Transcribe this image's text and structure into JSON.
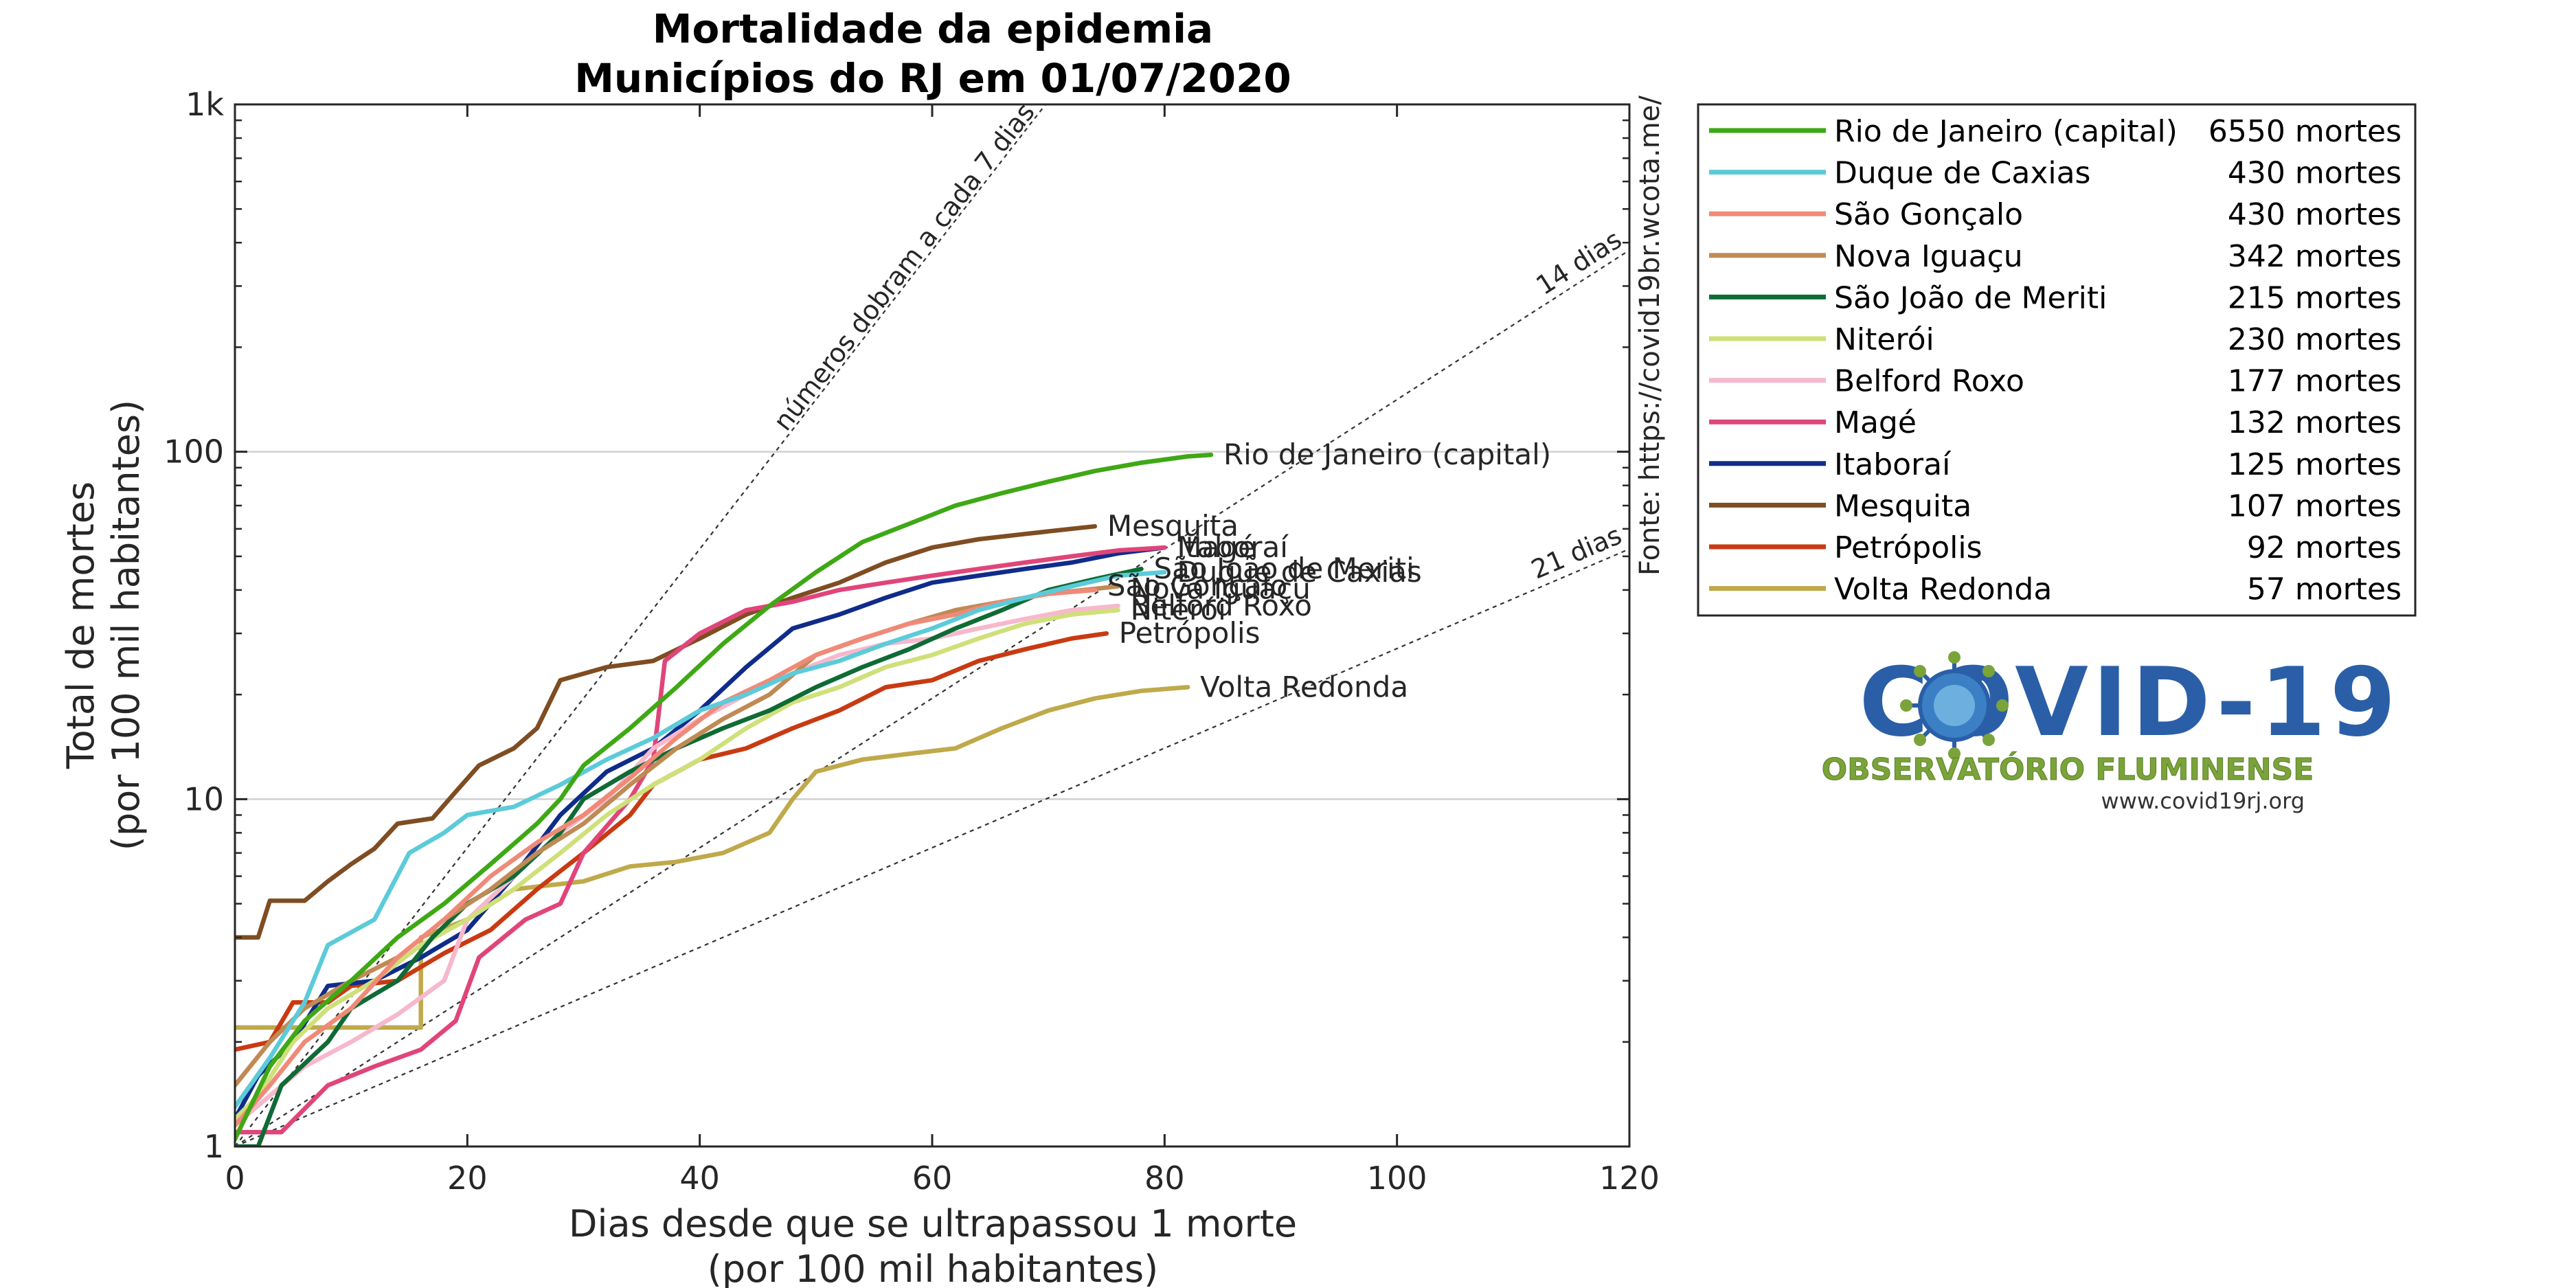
{
  "chart_data": {
    "type": "line",
    "title": "Mortalidade da epidemia",
    "subtitle": "Municípios do RJ em 01/07/2020",
    "xlabel": "Dias desde que se ultrapassou 1 morte",
    "xlabel2": "(por 100 mil habitantes)",
    "ylabel": "Total de mortes",
    "ylabel2": "(por 100 mil habitantes)",
    "xlim": [
      0,
      120
    ],
    "ylim": [
      1,
      1000
    ],
    "yscale": "log",
    "x_ticks": [
      0,
      20,
      40,
      60,
      80,
      100,
      120
    ],
    "x_tick_labels": [
      "0",
      "20",
      "40",
      "60",
      "80",
      "100",
      "120"
    ],
    "y_ticks": [
      1,
      10,
      100,
      1000
    ],
    "y_tick_labels": [
      "1",
      "10",
      "100",
      "1k"
    ],
    "grid": "horizontal-major",
    "source": "Fonte: https://covid19br.wcota.me/",
    "reference_lines": [
      {
        "label": "números dobram a cada 7 dias",
        "doubling_days": 7
      },
      {
        "label": "14 dias",
        "doubling_days": 14
      },
      {
        "label": "21 dias",
        "doubling_days": 21
      }
    ],
    "legend_position": "right-outside",
    "series": [
      {
        "name": "Rio de Janeiro (capital)",
        "deaths": "6550 mortes",
        "color": "#3fa815",
        "label_offset": 0,
        "points": [
          [
            0,
            1.05
          ],
          [
            3,
            1.7
          ],
          [
            6,
            2.3
          ],
          [
            10,
            3.0
          ],
          [
            14,
            4.0
          ],
          [
            18,
            5.0
          ],
          [
            22,
            6.5
          ],
          [
            26,
            8.5
          ],
          [
            28,
            10
          ],
          [
            30,
            12.5
          ],
          [
            34,
            16
          ],
          [
            38,
            21
          ],
          [
            42,
            28
          ],
          [
            46,
            36
          ],
          [
            50,
            45
          ],
          [
            54,
            55
          ],
          [
            58,
            62
          ],
          [
            62,
            70
          ],
          [
            66,
            76
          ],
          [
            70,
            82
          ],
          [
            74,
            88
          ],
          [
            78,
            93
          ],
          [
            82,
            97
          ],
          [
            84,
            98
          ]
        ]
      },
      {
        "name": "Duque de Caxias",
        "deaths": "430 mortes",
        "color": "#5ccbd9",
        "label_offset": 0,
        "points": [
          [
            0,
            1.3
          ],
          [
            3,
            1.8
          ],
          [
            6,
            2.6
          ],
          [
            8,
            3.8
          ],
          [
            12,
            4.5
          ],
          [
            15,
            7
          ],
          [
            18,
            8
          ],
          [
            20,
            9
          ],
          [
            24,
            9.5
          ],
          [
            28,
            11
          ],
          [
            32,
            13
          ],
          [
            36,
            15
          ],
          [
            40,
            18
          ],
          [
            44,
            20
          ],
          [
            48,
            23
          ],
          [
            52,
            25
          ],
          [
            56,
            28
          ],
          [
            60,
            31
          ],
          [
            64,
            35
          ],
          [
            68,
            38
          ],
          [
            72,
            41
          ],
          [
            76,
            44
          ],
          [
            80,
            45
          ]
        ]
      },
      {
        "name": "São Gonçalo",
        "deaths": "430 mortes",
        "color": "#f08a78",
        "label_offset": -6,
        "points": [
          [
            0,
            1.15
          ],
          [
            3,
            1.5
          ],
          [
            6,
            2.0
          ],
          [
            10,
            2.5
          ],
          [
            14,
            3.5
          ],
          [
            18,
            4.5
          ],
          [
            22,
            6
          ],
          [
            26,
            7.5
          ],
          [
            30,
            9
          ],
          [
            34,
            11.5
          ],
          [
            38,
            15
          ],
          [
            42,
            19
          ],
          [
            46,
            22
          ],
          [
            50,
            26
          ],
          [
            54,
            29
          ],
          [
            58,
            32
          ],
          [
            62,
            34
          ],
          [
            66,
            37
          ],
          [
            70,
            39
          ],
          [
            74,
            40
          ]
        ]
      },
      {
        "name": "Nova Iguaçu",
        "deaths": "342 mortes",
        "color": "#c08a55",
        "label_offset": 4,
        "points": [
          [
            0,
            1.5
          ],
          [
            3,
            2.0
          ],
          [
            6,
            2.5
          ],
          [
            10,
            3.0
          ],
          [
            14,
            3.5
          ],
          [
            18,
            4.5
          ],
          [
            22,
            5.5
          ],
          [
            26,
            7
          ],
          [
            30,
            8.5
          ],
          [
            34,
            11
          ],
          [
            38,
            14
          ],
          [
            42,
            17
          ],
          [
            46,
            20
          ],
          [
            50,
            26
          ],
          [
            54,
            29
          ],
          [
            58,
            32
          ],
          [
            62,
            35
          ],
          [
            66,
            37
          ],
          [
            70,
            39
          ],
          [
            76,
            41
          ]
        ]
      },
      {
        "name": "São João de Meriti",
        "deaths": "215 mortes",
        "color": "#0f6b35",
        "label_offset": 0,
        "points": [
          [
            0,
            1.0
          ],
          [
            2,
            1.0
          ],
          [
            4,
            1.5
          ],
          [
            8,
            2.0
          ],
          [
            10,
            2.5
          ],
          [
            14,
            3.0
          ],
          [
            17,
            4.0
          ],
          [
            20,
            5.0
          ],
          [
            24,
            6
          ],
          [
            28,
            8
          ],
          [
            30,
            10
          ],
          [
            34,
            12
          ],
          [
            38,
            14
          ],
          [
            42,
            16
          ],
          [
            46,
            18
          ],
          [
            50,
            21
          ],
          [
            54,
            24
          ],
          [
            58,
            27
          ],
          [
            62,
            31
          ],
          [
            66,
            35
          ],
          [
            70,
            40
          ],
          [
            74,
            43
          ],
          [
            78,
            46
          ]
        ]
      },
      {
        "name": "Niterói",
        "deaths": "230 mortes",
        "color": "#cfe07a",
        "label_offset": 0,
        "points": [
          [
            0,
            1.2
          ],
          [
            2,
            1.4
          ],
          [
            5,
            2.0
          ],
          [
            8,
            2.5
          ],
          [
            12,
            3.0
          ],
          [
            16,
            3.8
          ],
          [
            20,
            4.5
          ],
          [
            24,
            5.5
          ],
          [
            28,
            7
          ],
          [
            32,
            9
          ],
          [
            36,
            11
          ],
          [
            40,
            13
          ],
          [
            44,
            16
          ],
          [
            48,
            19
          ],
          [
            52,
            21
          ],
          [
            56,
            24
          ],
          [
            60,
            26
          ],
          [
            64,
            29
          ],
          [
            68,
            32
          ],
          [
            72,
            34
          ],
          [
            76,
            35
          ]
        ]
      },
      {
        "name": "Belford Roxo",
        "deaths": "177 mortes",
        "color": "#f7b8cc",
        "label_offset": 0,
        "points": [
          [
            0,
            1.15
          ],
          [
            3,
            1.4
          ],
          [
            6,
            1.7
          ],
          [
            10,
            2.0
          ],
          [
            14,
            2.4
          ],
          [
            18,
            3.0
          ],
          [
            20,
            4.5
          ],
          [
            24,
            6
          ],
          [
            28,
            8
          ],
          [
            32,
            10
          ],
          [
            36,
            14
          ],
          [
            40,
            17
          ],
          [
            44,
            20
          ],
          [
            48,
            23
          ],
          [
            52,
            26
          ],
          [
            56,
            28
          ],
          [
            60,
            29
          ],
          [
            64,
            31
          ],
          [
            68,
            33
          ],
          [
            72,
            35
          ],
          [
            76,
            36
          ]
        ]
      },
      {
        "name": "Magé",
        "deaths": "132 mortes",
        "color": "#e0457a",
        "label_offset": 0,
        "points": [
          [
            0,
            1.1
          ],
          [
            4,
            1.1
          ],
          [
            8,
            1.5
          ],
          [
            12,
            1.7
          ],
          [
            16,
            1.9
          ],
          [
            19,
            2.3
          ],
          [
            21,
            3.5
          ],
          [
            25,
            4.5
          ],
          [
            28,
            5
          ],
          [
            30,
            7
          ],
          [
            34,
            10
          ],
          [
            36,
            13
          ],
          [
            37,
            25
          ],
          [
            40,
            30
          ],
          [
            44,
            35
          ],
          [
            48,
            37
          ],
          [
            52,
            40
          ],
          [
            56,
            42
          ],
          [
            60,
            44
          ],
          [
            64,
            46
          ],
          [
            68,
            48
          ],
          [
            72,
            50
          ],
          [
            76,
            52
          ],
          [
            80,
            53
          ]
        ]
      },
      {
        "name": "Itaboraí",
        "deaths": "125 mortes",
        "color": "#102c8a",
        "label_offset": 0,
        "points": [
          [
            0,
            1.2
          ],
          [
            2,
            1.6
          ],
          [
            5,
            2.0
          ],
          [
            8,
            2.9
          ],
          [
            12,
            3.0
          ],
          [
            16,
            3.5
          ],
          [
            20,
            4.2
          ],
          [
            24,
            6
          ],
          [
            28,
            9
          ],
          [
            32,
            12
          ],
          [
            36,
            14
          ],
          [
            40,
            18
          ],
          [
            44,
            24
          ],
          [
            48,
            31
          ],
          [
            52,
            34
          ],
          [
            56,
            38
          ],
          [
            60,
            42
          ],
          [
            64,
            44
          ],
          [
            68,
            46
          ],
          [
            72,
            48
          ],
          [
            76,
            51
          ],
          [
            80,
            53
          ]
        ]
      },
      {
        "name": "Mesquita",
        "deaths": "107 mortes",
        "color": "#7f4d22",
        "label_offset": 0,
        "points": [
          [
            0,
            4.0
          ],
          [
            2,
            4.0
          ],
          [
            3,
            5.1
          ],
          [
            6,
            5.1
          ],
          [
            8,
            5.8
          ],
          [
            10,
            6.5
          ],
          [
            12,
            7.2
          ],
          [
            14,
            8.5
          ],
          [
            17,
            8.8
          ],
          [
            19,
            10.5
          ],
          [
            21,
            12.5
          ],
          [
            24,
            14
          ],
          [
            26,
            16
          ],
          [
            28,
            22
          ],
          [
            32,
            24
          ],
          [
            36,
            25
          ],
          [
            40,
            29
          ],
          [
            44,
            34
          ],
          [
            48,
            38
          ],
          [
            52,
            42
          ],
          [
            56,
            48
          ],
          [
            60,
            53
          ],
          [
            64,
            56
          ],
          [
            68,
            58
          ],
          [
            72,
            60
          ],
          [
            74,
            61
          ]
        ]
      },
      {
        "name": "Petrópolis",
        "deaths": "92 mortes",
        "color": "#c93a12",
        "label_offset": 0,
        "points": [
          [
            0,
            1.9
          ],
          [
            3,
            2.0
          ],
          [
            5,
            2.6
          ],
          [
            8,
            2.6
          ],
          [
            10,
            2.9
          ],
          [
            14,
            3.0
          ],
          [
            18,
            3.6
          ],
          [
            22,
            4.2
          ],
          [
            26,
            5.5
          ],
          [
            30,
            7
          ],
          [
            34,
            9
          ],
          [
            36,
            11
          ],
          [
            40,
            13
          ],
          [
            44,
            14
          ],
          [
            48,
            16
          ],
          [
            52,
            18
          ],
          [
            56,
            21
          ],
          [
            60,
            22
          ],
          [
            64,
            25
          ],
          [
            68,
            27
          ],
          [
            72,
            29
          ],
          [
            75,
            30
          ]
        ]
      },
      {
        "name": "Volta Redonda",
        "deaths": "57 mortes",
        "color": "#bfa94a",
        "label_offset": 0,
        "points": [
          [
            0,
            2.2
          ],
          [
            4,
            2.2
          ],
          [
            8,
            2.2
          ],
          [
            12,
            2.2
          ],
          [
            16,
            2.2
          ],
          [
            16,
            4.0
          ],
          [
            20,
            4.5
          ],
          [
            24,
            5.5
          ],
          [
            30,
            5.8
          ],
          [
            34,
            6.4
          ],
          [
            38,
            6.6
          ],
          [
            42,
            7
          ],
          [
            46,
            8
          ],
          [
            48,
            10
          ],
          [
            50,
            12
          ],
          [
            54,
            13
          ],
          [
            58,
            13.5
          ],
          [
            62,
            14
          ],
          [
            66,
            16
          ],
          [
            70,
            18
          ],
          [
            74,
            19.5
          ],
          [
            78,
            20.5
          ],
          [
            82,
            21
          ]
        ]
      }
    ]
  },
  "logo": {
    "main_text": "COVID-19",
    "subtitle": "OBSERVATÓRIO FLUMINENSE",
    "url": "www.covid19rj.org",
    "color_main": "#2a5fa8",
    "color_sub": "#7aa33a"
  }
}
